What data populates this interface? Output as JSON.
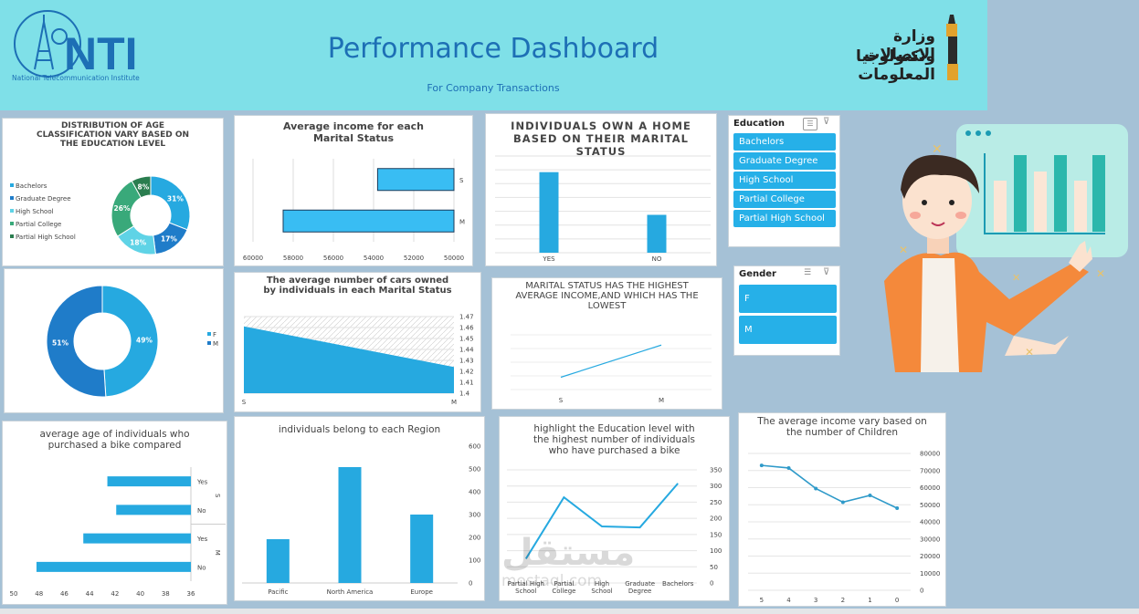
{
  "header": {
    "logo_text": "NTI",
    "logo_caption": "National Telecommunication Institute",
    "title": "Performance Dashboard",
    "subtitle": "For Company Transactions",
    "ministry_logo_text": [
      "وزارة الاتصالات",
      "وتكنولوجيا المعلومات"
    ]
  },
  "slicers": {
    "education": {
      "title": "Education",
      "items": [
        "Bachelors",
        "Graduate Degree",
        "High School",
        "Partial College",
        "Partial High School"
      ]
    },
    "gender": {
      "title": "Gender",
      "items": [
        "F",
        "M"
      ]
    }
  },
  "watermark": {
    "text": "مستقل",
    "url": "mostaql.com"
  },
  "colors": {
    "accent": "#26a9e0",
    "dark_blue": "#1f7cc9",
    "teal": "#3fc1c9",
    "green": "#39a97a",
    "dark_green": "#2a7d4f",
    "banner": "#7fe0e8"
  },
  "chart_data": [
    {
      "id": "education_donut",
      "type": "pie",
      "title": "DISTRIBUTION OF AGE CLASSIFICATION VARY BASED ON THE EDUCATION LEVEL",
      "categories": [
        "Bachelors",
        "Graduate Degree",
        "High School",
        "Partial College",
        "Partial High School"
      ],
      "values": [
        31,
        17,
        18,
        26,
        8
      ],
      "labels": [
        "31%",
        "17%",
        "18%",
        "26%",
        "8%"
      ],
      "legend": "left"
    },
    {
      "id": "gender_donut",
      "type": "pie",
      "title": "",
      "categories": [
        "F",
        "M"
      ],
      "values": [
        49,
        51
      ],
      "labels": [
        "49%",
        "51%"
      ],
      "legend": "right"
    },
    {
      "id": "avg_income_marital",
      "type": "bar",
      "title": "Average income for each Marital Status",
      "orientation": "horizontal",
      "x_reversed": true,
      "categories": [
        "S",
        "M"
      ],
      "values": [
        53800,
        58500
      ],
      "xlim": [
        50000,
        60000
      ],
      "ticks": [
        "60000",
        "58000",
        "56000",
        "54000",
        "52000",
        "50000"
      ]
    },
    {
      "id": "home_owner",
      "type": "bar",
      "title": "INDIVIDUALS OWN A HOME BASED ON THEIR MARITAL STATUS",
      "categories": [
        "YES",
        "NO"
      ],
      "values": [
        100,
        47
      ],
      "ylim": [
        0,
        120
      ]
    },
    {
      "id": "avg_cars",
      "type": "area",
      "title": "The average number of cars owned by individuals in each Marital Status",
      "categories": [
        "S",
        "M"
      ],
      "values": [
        1.461,
        1.424
      ],
      "ylim": [
        1.4,
        1.47
      ],
      "ticks": [
        "1.47",
        "1.46",
        "1.45",
        "1.44",
        "1.43",
        "1.42",
        "1.41",
        "1.4"
      ]
    },
    {
      "id": "marital_income_line",
      "type": "line",
      "title": "MARITAL STATUS HAS THE HIGHEST AVERAGE INCOME,AND WHICH HAS THE LOWEST",
      "categories": [
        "S",
        "M"
      ],
      "values": [
        53800,
        58500
      ]
    },
    {
      "id": "bike_age",
      "type": "bar",
      "title": "average age of individuals who purchased a bike compared",
      "orientation": "horizontal",
      "x_reversed": true,
      "groups": [
        "S",
        "S",
        "M",
        "M"
      ],
      "categories": [
        "Yes",
        "No",
        "Yes",
        "No"
      ],
      "values": [
        42.6,
        41.9,
        44.5,
        48.2
      ],
      "xlim": [
        36,
        50
      ],
      "ticks": [
        "50",
        "48",
        "46",
        "44",
        "42",
        "40",
        "38",
        "36"
      ]
    },
    {
      "id": "region",
      "type": "bar",
      "title": "individuals belong to each Region",
      "categories": [
        "Pacific",
        "North America",
        "Europe"
      ],
      "values": [
        192,
        508,
        300
      ],
      "ylim": [
        0,
        600
      ],
      "ticks": [
        "600",
        "500",
        "400",
        "300",
        "200",
        "100",
        "0"
      ]
    },
    {
      "id": "education_bike",
      "type": "line",
      "title": "highlight the Education level with the highest number of individuals who have purchased a bike",
      "categories": [
        "Partial High School",
        "Partial College",
        "High School",
        "Graduate Degree",
        "Bachelors"
      ],
      "values": [
        75,
        265,
        175,
        172,
        308
      ],
      "ylim": [
        0,
        350
      ],
      "ticks": [
        "350",
        "300",
        "250",
        "200",
        "150",
        "100",
        "50",
        "0"
      ]
    },
    {
      "id": "children_income",
      "type": "line",
      "title": "The average income vary based on the number of Children",
      "categories": [
        "5",
        "4",
        "3",
        "2",
        "1",
        "0"
      ],
      "values": [
        73000,
        71500,
        59500,
        51500,
        55500,
        48000
      ],
      "ylim": [
        0,
        80000
      ],
      "ticks": [
        "80000",
        "70000",
        "60000",
        "50000",
        "40000",
        "30000",
        "20000",
        "10000",
        "0"
      ]
    }
  ]
}
